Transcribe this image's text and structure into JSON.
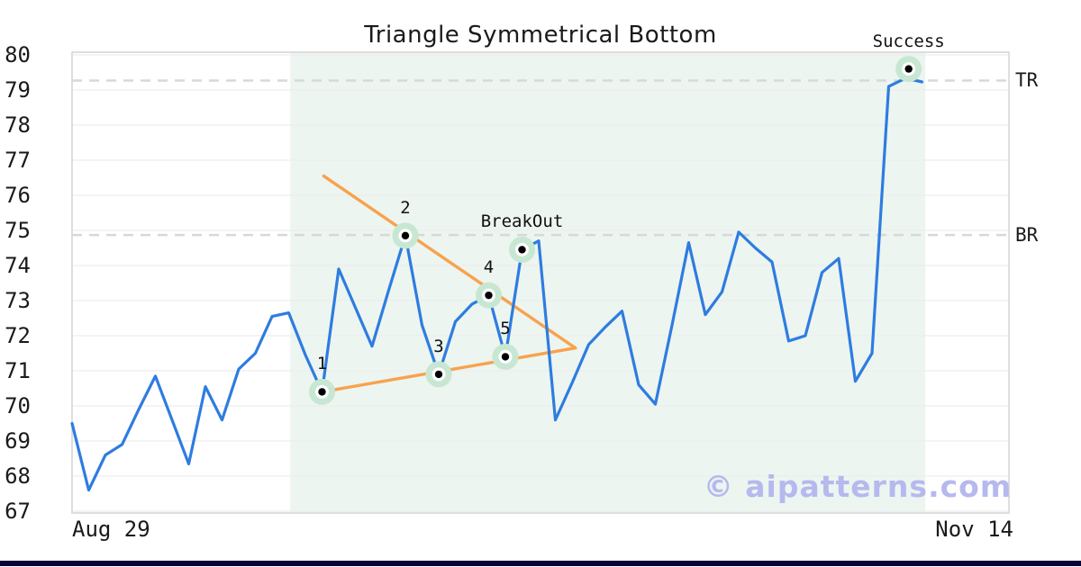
{
  "title": "Triangle Symmetrical Bottom",
  "watermark_text": "© aipatterns.com",
  "x_axis": {
    "start_label": "Aug 29",
    "end_label": "Nov 14"
  },
  "right_axis_labels": {
    "target": "TR",
    "breakout": "BR"
  },
  "colors": {
    "price_line": "#2e7ce0",
    "trendline": "#f8a24e",
    "shade": "#ecf5f0",
    "marker_fill": "#c7e7d2",
    "marker_ring": "#ffffff",
    "marker_dot": "#000000",
    "grid": "#ededed",
    "frame": "#d4d4d4",
    "dashed_level": "#d8d8d8",
    "watermark": "#b6b9ee",
    "bottom_bar": "#050538"
  },
  "chart_data": {
    "type": "line",
    "title": "Triangle Symmetrical Bottom",
    "xlabel": "",
    "ylabel": "",
    "ylim": [
      67,
      80
    ],
    "y_ticks": [
      67,
      68,
      69,
      70,
      71,
      72,
      73,
      74,
      75,
      76,
      77,
      78,
      79,
      80
    ],
    "x_tick_labels": [
      "Aug 29",
      "Nov 14"
    ],
    "grid": "horizontal-only",
    "legend": "none",
    "series": [
      {
        "name": "price",
        "color": "#2e7ce0",
        "points": [
          [
            0,
            69.5
          ],
          [
            1,
            67.6
          ],
          [
            2,
            68.6
          ],
          [
            3,
            68.9
          ],
          [
            4,
            69.9
          ],
          [
            5,
            70.85
          ],
          [
            6,
            69.6
          ],
          [
            7,
            68.35
          ],
          [
            8,
            70.55
          ],
          [
            9,
            69.6
          ],
          [
            10,
            71.05
          ],
          [
            11,
            71.5
          ],
          [
            12,
            72.55
          ],
          [
            13,
            72.65
          ],
          [
            14,
            71.45
          ],
          [
            15,
            70.4
          ],
          [
            16,
            73.9
          ],
          [
            17,
            72.8
          ],
          [
            18,
            71.7
          ],
          [
            19,
            73.3
          ],
          [
            20,
            74.85
          ],
          [
            21,
            72.3
          ],
          [
            22,
            70.9
          ],
          [
            23,
            72.4
          ],
          [
            24,
            72.9
          ],
          [
            25,
            73.15
          ],
          [
            26,
            71.4
          ],
          [
            27,
            74.45
          ],
          [
            28,
            74.7
          ],
          [
            29,
            69.6
          ],
          [
            30,
            70.65
          ],
          [
            31,
            71.75
          ],
          [
            32,
            72.25
          ],
          [
            33,
            72.7
          ],
          [
            34,
            70.6
          ],
          [
            35,
            70.05
          ],
          [
            36,
            72.3
          ],
          [
            37,
            74.65
          ],
          [
            38,
            72.6
          ],
          [
            39,
            73.25
          ],
          [
            40,
            74.95
          ],
          [
            41,
            74.5
          ],
          [
            42,
            74.1
          ],
          [
            43,
            71.85
          ],
          [
            44,
            72.0
          ],
          [
            45,
            73.8
          ],
          [
            46,
            74.2
          ],
          [
            47,
            70.7
          ],
          [
            48,
            71.5
          ],
          [
            49,
            79.1
          ],
          [
            50,
            79.33
          ],
          [
            51,
            79.23
          ]
        ]
      }
    ],
    "trendlines": [
      {
        "name": "upper-converging-line",
        "from": [
          15.1,
          76.55
        ],
        "to": [
          30.2,
          71.65
        ]
      },
      {
        "name": "lower-converging-line",
        "from": [
          15.0,
          70.4
        ],
        "to": [
          30.2,
          71.65
        ]
      }
    ],
    "levels": [
      {
        "label": "TR",
        "value": 79.27
      },
      {
        "label": "BR",
        "value": 74.87
      }
    ],
    "pattern_points": [
      {
        "label": "1",
        "x": 15,
        "value": 70.4
      },
      {
        "label": "2",
        "x": 20,
        "value": 74.85
      },
      {
        "label": "3",
        "x": 22,
        "value": 70.9
      },
      {
        "label": "4",
        "x": 25,
        "value": 73.15
      },
      {
        "label": "5",
        "x": 26,
        "value": 71.4
      },
      {
        "label": "BreakOut",
        "x": 27,
        "value": 74.45
      },
      {
        "label": "Success",
        "x": 50.2,
        "value": 79.6
      }
    ],
    "shaded_region": {
      "x_from": 13.1,
      "x_to": 51.2
    }
  }
}
